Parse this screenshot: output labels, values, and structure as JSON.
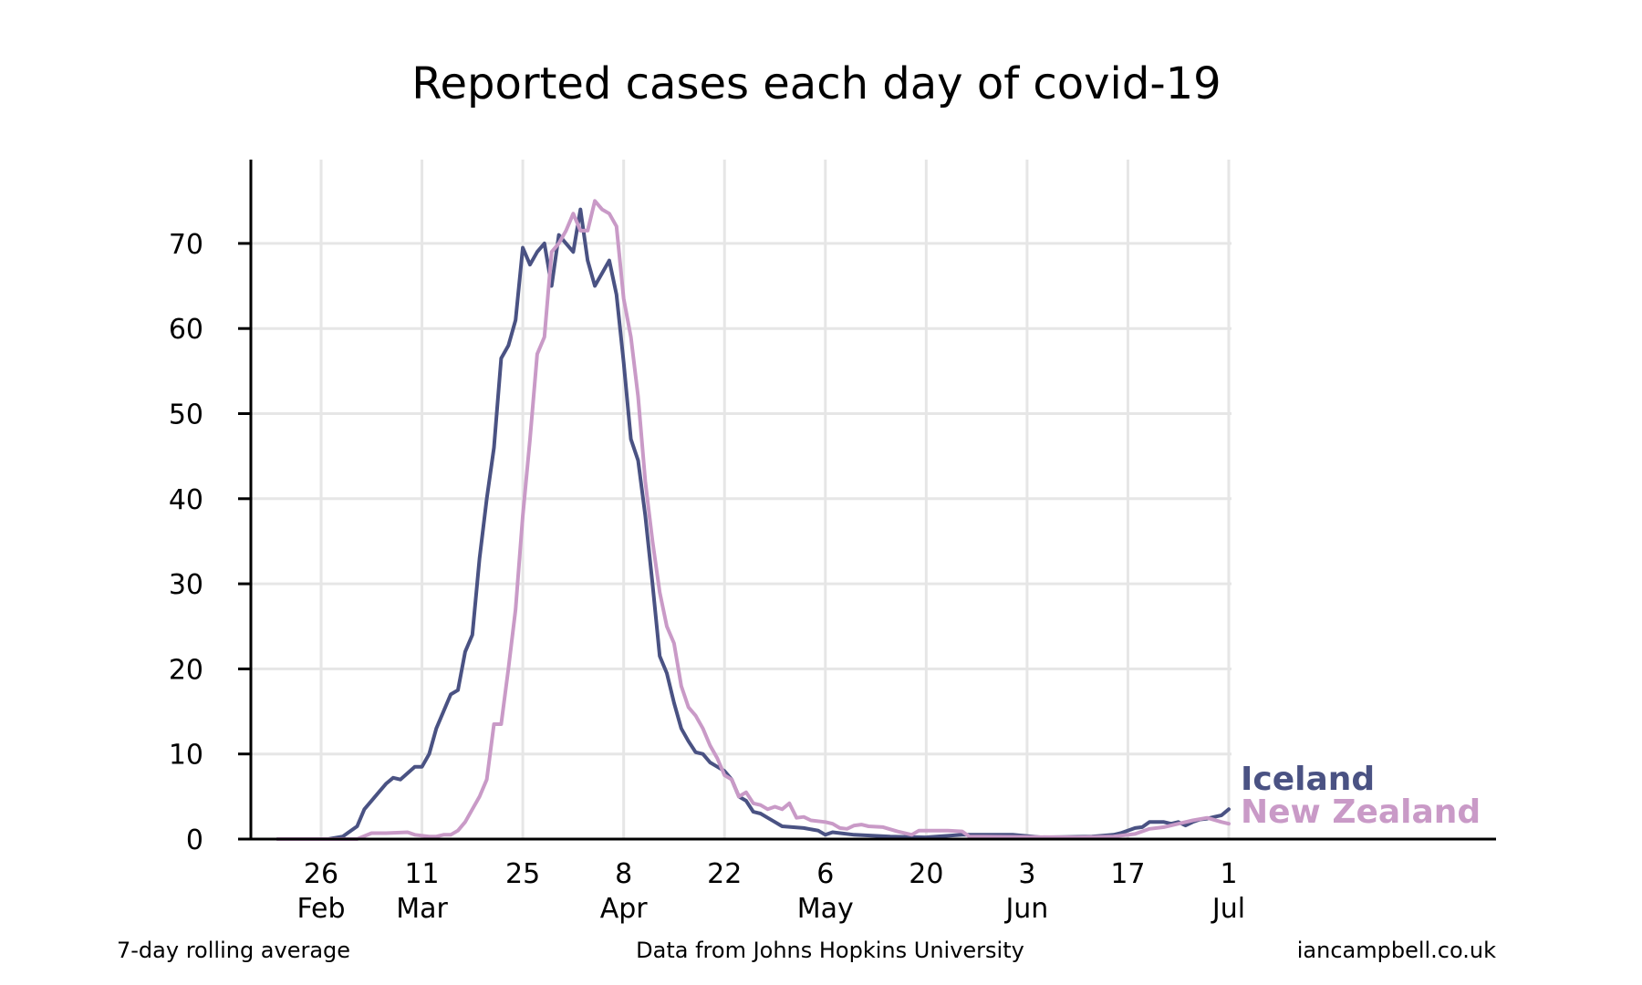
{
  "colors": {
    "iceland": "#4a5283",
    "new_zealand": "#c99ac7",
    "grid": "#e6e6e6",
    "axis": "#000000"
  },
  "footer": {
    "left": "7-day rolling average",
    "center": "Data from Johns Hopkins University",
    "right": "iancampbell.co.uk"
  },
  "chart_data": {
    "type": "line",
    "title": "Reported cases each day of covid-19",
    "xlabel": "",
    "ylabel": "",
    "x_range": [
      "2020-02-19",
      "2020-07-01"
    ],
    "ylim": [
      0,
      80
    ],
    "y_ticks": [
      0,
      10,
      20,
      30,
      40,
      50,
      60,
      70
    ],
    "x_ticks": [
      {
        "date": "2020-02-26",
        "day": "26",
        "month": "Feb"
      },
      {
        "date": "2020-03-11",
        "day": "11",
        "month": "Mar"
      },
      {
        "date": "2020-03-25",
        "day": "25",
        "month": ""
      },
      {
        "date": "2020-04-08",
        "day": "8",
        "month": "Apr"
      },
      {
        "date": "2020-04-22",
        "day": "22",
        "month": ""
      },
      {
        "date": "2020-05-06",
        "day": "6",
        "month": "May"
      },
      {
        "date": "2020-05-20",
        "day": "20",
        "month": ""
      },
      {
        "date": "2020-06-03",
        "day": "3",
        "month": "Jun"
      },
      {
        "date": "2020-06-17",
        "day": "17",
        "month": ""
      },
      {
        "date": "2020-07-01",
        "day": "1",
        "month": "Jul"
      }
    ],
    "grid": true,
    "legend": "right end of lines",
    "series": [
      {
        "name": "Iceland",
        "color": "#4a5283",
        "points": [
          [
            "2020-02-20",
            0
          ],
          [
            "2020-02-27",
            0
          ],
          [
            "2020-02-29",
            0.3
          ],
          [
            "2020-03-02",
            1.5
          ],
          [
            "2020-03-03",
            3.5
          ],
          [
            "2020-03-05",
            5.5
          ],
          [
            "2020-03-06",
            6.5
          ],
          [
            "2020-03-07",
            7.2
          ],
          [
            "2020-03-08",
            7
          ],
          [
            "2020-03-10",
            8.5
          ],
          [
            "2020-03-11",
            8.5
          ],
          [
            "2020-03-12",
            10
          ],
          [
            "2020-03-13",
            13
          ],
          [
            "2020-03-15",
            17
          ],
          [
            "2020-03-16",
            17.5
          ],
          [
            "2020-03-17",
            22
          ],
          [
            "2020-03-18",
            24
          ],
          [
            "2020-03-19",
            33
          ],
          [
            "2020-03-20",
            40
          ],
          [
            "2020-03-21",
            46
          ],
          [
            "2020-03-22",
            56.5
          ],
          [
            "2020-03-23",
            58
          ],
          [
            "2020-03-24",
            61
          ],
          [
            "2020-03-25",
            69.5
          ],
          [
            "2020-03-26",
            67.5
          ],
          [
            "2020-03-27",
            69
          ],
          [
            "2020-03-28",
            70
          ],
          [
            "2020-03-29",
            65
          ],
          [
            "2020-03-30",
            71
          ],
          [
            "2020-03-31",
            70
          ],
          [
            "2020-04-01",
            69
          ],
          [
            "2020-04-02",
            74
          ],
          [
            "2020-04-03",
            68
          ],
          [
            "2020-04-04",
            65
          ],
          [
            "2020-04-05",
            66.5
          ],
          [
            "2020-04-06",
            68
          ],
          [
            "2020-04-07",
            64
          ],
          [
            "2020-04-08",
            56
          ],
          [
            "2020-04-09",
            47
          ],
          [
            "2020-04-10",
            44.5
          ],
          [
            "2020-04-11",
            38
          ],
          [
            "2020-04-12",
            30
          ],
          [
            "2020-04-13",
            21.5
          ],
          [
            "2020-04-14",
            19.5
          ],
          [
            "2020-04-15",
            16
          ],
          [
            "2020-04-16",
            13
          ],
          [
            "2020-04-17",
            11.5
          ],
          [
            "2020-04-18",
            10.2
          ],
          [
            "2020-04-19",
            10
          ],
          [
            "2020-04-20",
            9
          ],
          [
            "2020-04-21",
            8.5
          ],
          [
            "2020-04-22",
            8
          ],
          [
            "2020-04-23",
            7
          ],
          [
            "2020-04-24",
            5
          ],
          [
            "2020-04-25",
            4.5
          ],
          [
            "2020-04-26",
            3.2
          ],
          [
            "2020-04-27",
            3
          ],
          [
            "2020-04-28",
            2.5
          ],
          [
            "2020-04-29",
            2
          ],
          [
            "2020-04-30",
            1.5
          ],
          [
            "2020-05-03",
            1.3
          ],
          [
            "2020-05-05",
            1
          ],
          [
            "2020-05-06",
            0.5
          ],
          [
            "2020-05-07",
            0.8
          ],
          [
            "2020-05-10",
            0.5
          ],
          [
            "2020-05-15",
            0.3
          ],
          [
            "2020-05-20",
            0.2
          ],
          [
            "2020-05-25",
            0.5
          ],
          [
            "2020-06-01",
            0.5
          ],
          [
            "2020-06-05",
            0.2
          ],
          [
            "2020-06-12",
            0.3
          ],
          [
            "2020-06-15",
            0.5
          ],
          [
            "2020-06-16",
            0.7
          ],
          [
            "2020-06-18",
            1.3
          ],
          [
            "2020-06-19",
            1.4
          ],
          [
            "2020-06-20",
            2
          ],
          [
            "2020-06-22",
            2
          ],
          [
            "2020-06-23",
            1.8
          ],
          [
            "2020-06-24",
            2
          ],
          [
            "2020-06-25",
            1.6
          ],
          [
            "2020-06-26",
            2
          ],
          [
            "2020-06-27",
            2.3
          ],
          [
            "2020-06-28",
            2.4
          ],
          [
            "2020-06-29",
            2.6
          ],
          [
            "2020-06-30",
            2.8
          ],
          [
            "2020-07-01",
            3.5
          ]
        ]
      },
      {
        "name": "New Zealand",
        "color": "#c99ac7",
        "points": [
          [
            "2020-02-20",
            0
          ],
          [
            "2020-03-02",
            0
          ],
          [
            "2020-03-04",
            0.7
          ],
          [
            "2020-03-06",
            0.7
          ],
          [
            "2020-03-09",
            0.8
          ],
          [
            "2020-03-10",
            0.5
          ],
          [
            "2020-03-12",
            0.3
          ],
          [
            "2020-03-13",
            0.3
          ],
          [
            "2020-03-14",
            0.5
          ],
          [
            "2020-03-15",
            0.5
          ],
          [
            "2020-03-16",
            1
          ],
          [
            "2020-03-17",
            2
          ],
          [
            "2020-03-18",
            3.5
          ],
          [
            "2020-03-19",
            5
          ],
          [
            "2020-03-20",
            7
          ],
          [
            "2020-03-21",
            13.5
          ],
          [
            "2020-03-22",
            13.5
          ],
          [
            "2020-03-23",
            20
          ],
          [
            "2020-03-24",
            27
          ],
          [
            "2020-03-25",
            38
          ],
          [
            "2020-03-26",
            47
          ],
          [
            "2020-03-27",
            57
          ],
          [
            "2020-03-28",
            59
          ],
          [
            "2020-03-29",
            69
          ],
          [
            "2020-03-30",
            70
          ],
          [
            "2020-03-31",
            71.5
          ],
          [
            "2020-04-01",
            73.5
          ],
          [
            "2020-04-02",
            71.5
          ],
          [
            "2020-04-03",
            71.5
          ],
          [
            "2020-04-04",
            75
          ],
          [
            "2020-04-05",
            74
          ],
          [
            "2020-04-06",
            73.5
          ],
          [
            "2020-04-07",
            72
          ],
          [
            "2020-04-08",
            63.5
          ],
          [
            "2020-04-09",
            59
          ],
          [
            "2020-04-10",
            52
          ],
          [
            "2020-04-11",
            42
          ],
          [
            "2020-04-12",
            35
          ],
          [
            "2020-04-13",
            29
          ],
          [
            "2020-04-14",
            25
          ],
          [
            "2020-04-15",
            23
          ],
          [
            "2020-04-16",
            18
          ],
          [
            "2020-04-17",
            15.5
          ],
          [
            "2020-04-18",
            14.5
          ],
          [
            "2020-04-19",
            13
          ],
          [
            "2020-04-20",
            11
          ],
          [
            "2020-04-21",
            9.5
          ],
          [
            "2020-04-22",
            7.5
          ],
          [
            "2020-04-23",
            7
          ],
          [
            "2020-04-24",
            5
          ],
          [
            "2020-04-25",
            5.5
          ],
          [
            "2020-04-26",
            4.2
          ],
          [
            "2020-04-27",
            4
          ],
          [
            "2020-04-28",
            3.5
          ],
          [
            "2020-04-29",
            3.8
          ],
          [
            "2020-04-30",
            3.5
          ],
          [
            "2020-05-01",
            4.2
          ],
          [
            "2020-05-02",
            2.5
          ],
          [
            "2020-05-03",
            2.6
          ],
          [
            "2020-05-04",
            2.2
          ],
          [
            "2020-05-06",
            2
          ],
          [
            "2020-05-07",
            1.8
          ],
          [
            "2020-05-08",
            1.3
          ],
          [
            "2020-05-09",
            1.2
          ],
          [
            "2020-05-10",
            1.6
          ],
          [
            "2020-05-11",
            1.7
          ],
          [
            "2020-05-12",
            1.5
          ],
          [
            "2020-05-14",
            1.4
          ],
          [
            "2020-05-16",
            0.9
          ],
          [
            "2020-05-18",
            0.5
          ],
          [
            "2020-05-19",
            1
          ],
          [
            "2020-05-23",
            1
          ],
          [
            "2020-05-25",
            0.9
          ],
          [
            "2020-05-26",
            0.3
          ],
          [
            "2020-06-10",
            0.2
          ],
          [
            "2020-06-15",
            0.3
          ],
          [
            "2020-06-18",
            0.6
          ],
          [
            "2020-06-20",
            1.2
          ],
          [
            "2020-06-22",
            1.4
          ],
          [
            "2020-06-24",
            1.8
          ],
          [
            "2020-06-26",
            2.2
          ],
          [
            "2020-06-28",
            2.5
          ],
          [
            "2020-06-30",
            2
          ],
          [
            "2020-07-01",
            1.8
          ]
        ]
      }
    ]
  }
}
